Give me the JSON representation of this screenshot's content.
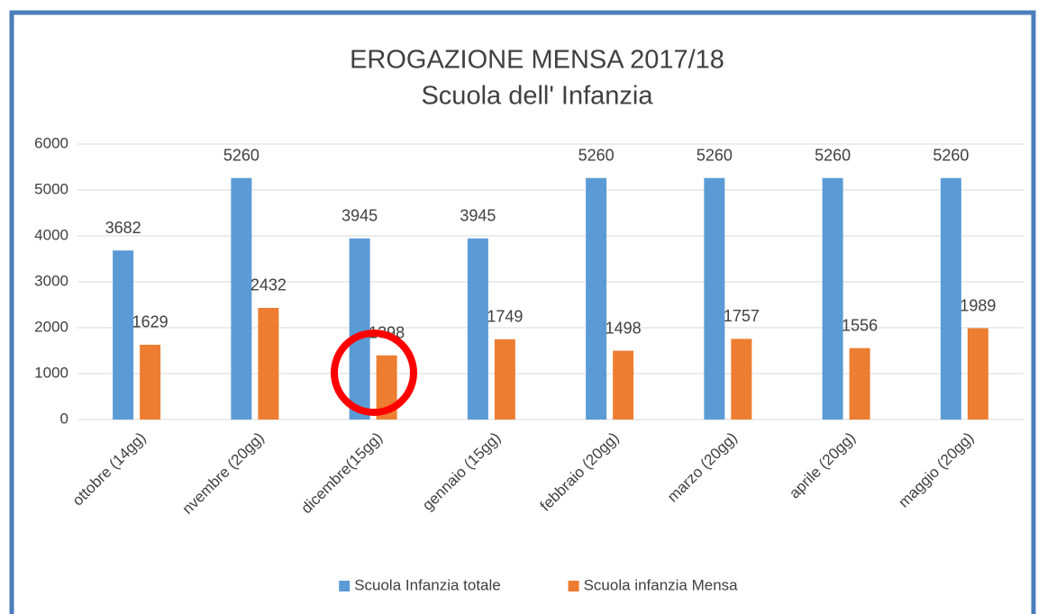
{
  "chart_data": {
    "type": "bar",
    "title": "EROGAZIONE MENSA 2017/18",
    "subtitle": "Scuola dell' Infanzia",
    "categories": [
      "ottobre (14gg)",
      "nvembre (20gg)",
      "dicembre(15gg)",
      "gennaio (15gg)",
      "febbraio (20gg)",
      "marzo (20gg)",
      "aprile (20gg)",
      "maggio (20gg)"
    ],
    "series": [
      {
        "name": "Scuola Infanzia totale",
        "color": "#5b9bd5",
        "values": [
          3682,
          5260,
          3945,
          3945,
          5260,
          5260,
          5260,
          5260
        ]
      },
      {
        "name": "Scuola infanzia Mensa",
        "color": "#ed7d31",
        "values": [
          1629,
          2432,
          1398,
          1749,
          1498,
          1757,
          1556,
          1989
        ]
      }
    ],
    "ylim": [
      0,
      6000
    ],
    "yticks": [
      0,
      1000,
      2000,
      3000,
      4000,
      5000,
      6000
    ],
    "grid": true,
    "legend": "bottom"
  }
}
